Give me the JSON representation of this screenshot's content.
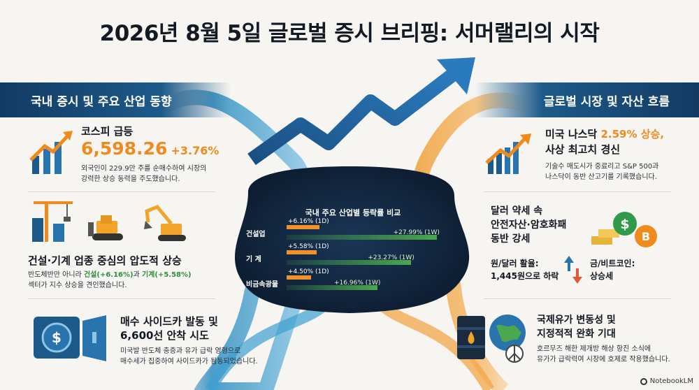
{
  "title": "2026년 8월 5일 글로벌 증시 브리핑: 서머랠리의 시작",
  "left_banner": "국내 증시 및 주요 산업 동향",
  "right_banner": "글로벌 시장 및 자산 흐름",
  "kospi": {
    "heading": "코스피 급등",
    "value": "6,598.26",
    "change": "+3.76%",
    "desc_line1": "외국인이 229.9만 주를 순매수하여 시장의",
    "desc_line2": "강력한 상승 동력을 주도했습니다."
  },
  "construction": {
    "heading": "건설·기계 업종 중심의 압도적 상승",
    "desc_pre": "반도체반만 아니라 ",
    "desc_hl1": "건설(+6.16%)",
    "desc_mid": "과 ",
    "desc_hl2": "기계(+5.58%)",
    "desc_line2": "섹터가 지수 상승을 견인했습니다."
  },
  "sidecar": {
    "heading_line1": "매수 사이드카 발동 및",
    "heading_line2": "6,600선 안착 시도",
    "desc_line1": "미국발 반도체 충증과 유가 급락 영형으로",
    "desc_line2": "매수세가 집중하여 사이드카가 됨동되었습니다."
  },
  "nasdaq": {
    "heading_pre": "미국 나스닥 ",
    "heading_hl": "2.59% 상승,",
    "heading_line2": "사상 최고치 경신",
    "desc_line1": "기술수 매도시가 중료리고 S&P 500과",
    "desc_line2": "나스닥이 동반 산고기를 기록했습니다."
  },
  "dollar": {
    "heading_line1": "달러 약세 속",
    "heading_line2": "안전자산·암호화패",
    "heading_line3": "동반 강세",
    "won_line1": "원/달러 활율:",
    "won_line2": "1,445원으로 하락",
    "gold_line1": "금/비트코인:",
    "gold_line2": "상승세"
  },
  "oil": {
    "heading_line1": "국제유가 변동성 및",
    "heading_line2": "지정적적 완화 기대",
    "desc_line1": "호르무즈 해한 제개방 해상 항진 소식에",
    "desc_line2": "유가가 급락력여 시장에 호제로 작용했습니다."
  },
  "center_panel": {
    "title": "국내 주요 산업별 등락률 비교"
  },
  "chart_data": {
    "type": "bar",
    "title": "국내 주요 산업별 등락률 비교",
    "categories": [
      "건설업",
      "기 계",
      "비금속광물"
    ],
    "series": [
      {
        "name": "1D",
        "values": [
          6.16,
          5.58,
          4.5
        ],
        "labels": [
          "+6.16%",
          "+5.58%",
          "+4.50%"
        ],
        "period": "(1D)"
      },
      {
        "name": "1W",
        "values": [
          27.99,
          23.27,
          16.96
        ],
        "labels": [
          "+27.99%",
          "+23.27%",
          "+16.96%"
        ],
        "period": "(1W)"
      }
    ],
    "colors": {
      "d1": "#f1912a",
      "w1": "#4aa84e"
    }
  },
  "footer": "NotebookLM",
  "colors": {
    "navy": "#123a63",
    "orange": "#f08a1c",
    "green": "#2f8e3a"
  }
}
